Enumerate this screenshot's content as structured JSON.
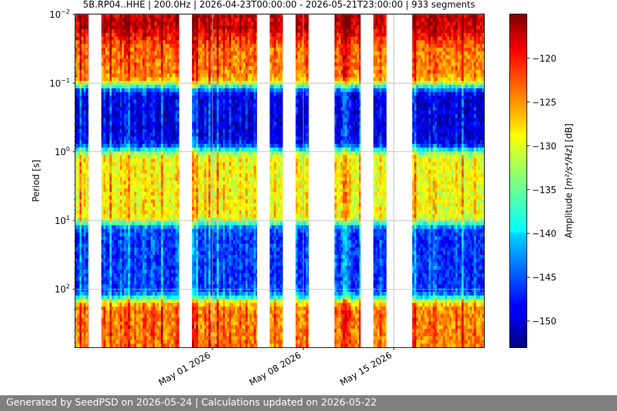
{
  "chart_data": {
    "type": "heatmap",
    "title": "5B.RP04..HHE | 200.0Hz | 2026-04-23T00:00:00 - 2026-05-21T23:00:00 | 933 segments",
    "xlabel": "",
    "ylabel": "Period [s]",
    "y_scale": "log",
    "y_inverted": true,
    "ylim": [
      0.01,
      700
    ],
    "x_range": [
      "2026-04-20T10:00",
      "2026-05-21T23:00"
    ],
    "x_ticks": [
      {
        "date": "2026-05-01",
        "label": "May 01 2026"
      },
      {
        "date": "2026-05-08",
        "label": "May 08 2026"
      },
      {
        "date": "2026-05-15",
        "label": "May 15 2026"
      }
    ],
    "y_ticks": [
      {
        "value": 0.01,
        "base": "10",
        "exp": "−2"
      },
      {
        "value": 0.1,
        "base": "10",
        "exp": "−1"
      },
      {
        "value": 1,
        "base": "10",
        "exp": "0"
      },
      {
        "value": 10,
        "base": "10",
        "exp": "1"
      },
      {
        "value": 100,
        "base": "10",
        "exp": "2"
      }
    ],
    "grid": true,
    "colorbar": {
      "label_prefix": "Amplitude [",
      "label_unit_html": "m²/s⁴/Hz",
      "label_suffix": "] [dB]",
      "range": [
        -153,
        -115
      ],
      "ticks": [
        -120,
        -125,
        -130,
        -135,
        -140,
        -145,
        -150
      ]
    },
    "data_intervals": [
      [
        "2026-04-20T10:00",
        "2026-04-21T10:00"
      ],
      [
        "2026-04-22T10:00",
        "2026-04-28T10:00"
      ],
      [
        "2026-04-29T10:00",
        "2026-05-04T10:00"
      ],
      [
        "2026-05-05T10:00",
        "2026-05-06T10:00"
      ],
      [
        "2026-05-07T10:00",
        "2026-05-08T10:00"
      ],
      [
        "2026-05-10T10:00",
        "2026-05-12T10:00"
      ],
      [
        "2026-05-13T10:00",
        "2026-05-14T10:00"
      ],
      [
        "2026-05-16T10:00",
        "2026-05-21T23:00"
      ]
    ],
    "dominant_features": [
      {
        "period_band_s": [
          0.01,
          0.015
        ],
        "level_db": -118
      },
      {
        "period_band_s": [
          0.02,
          0.08
        ],
        "level_db": -125
      },
      {
        "period_band_s": [
          0.15,
          0.6
        ],
        "level_db": -150
      },
      {
        "period_band_s": [
          2,
          4
        ],
        "level_db": -130
      },
      {
        "period_band_s": [
          10,
          200
        ],
        "level_db": -147
      },
      {
        "period_band_s": [
          250,
          700
        ],
        "level_db": -125
      }
    ]
  },
  "footer": {
    "text": "Generated by SeedPSD on 2026-05-24 | Calculations updated on 2026-05-22"
  }
}
